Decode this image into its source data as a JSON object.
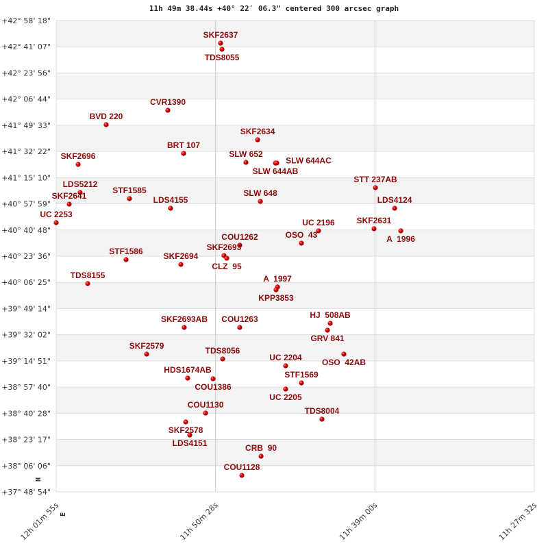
{
  "chart_data": {
    "type": "scatter",
    "title": "11h 49m 38.44s +40° 22′ 06.3\" centered 300 arcsec graph",
    "x_axis": {
      "unit": "RA hours",
      "reversed": true,
      "range_hours": [
        12.0319,
        11.4589
      ],
      "tick_labels": [
        "12h 01m 55s",
        "11h 50m 28s",
        "11h 39m 00s",
        "11h 27m 32s"
      ]
    },
    "y_axis": {
      "unit": "Dec degrees",
      "range_deg": [
        37.815,
        42.9717
      ],
      "tick_labels": [
        "+42° 58' 18\"",
        "+42° 41' 07\"",
        "+42° 23' 56\"",
        "+42° 06' 44\"",
        "+41° 49' 33\"",
        "+41° 32' 22\"",
        "+41° 15' 10\"",
        "+40° 57' 59\"",
        "+40° 40' 48\"",
        "+40° 23' 36\"",
        "+40° 06' 25\"",
        "+39° 49' 14\"",
        "+39° 32' 02\"",
        "+39° 14' 51\"",
        "+38° 57' 40\"",
        "+38° 40' 28\"",
        "+38° 23' 17\"",
        "+38° 06' 06\"",
        "+37° 48' 54\""
      ]
    },
    "compass": {
      "north": "N",
      "east": "E"
    },
    "grid": true,
    "colors": {
      "point": "#d40000",
      "label": "#8b0a0a",
      "band": "#f3f3f3",
      "grid": "#dddddd"
    },
    "points": [
      {
        "name": "SKF2637",
        "ra_h": 11.8349,
        "dec": 42.7246
      },
      {
        "name": "TDS8055",
        "ra_h": 11.8332,
        "dec": 42.6571
      },
      {
        "name": "CVR1390",
        "ra_h": 11.8981,
        "dec": 41.99
      },
      {
        "name": "BVD 220",
        "ra_h": 11.972,
        "dec": 41.8326
      },
      {
        "name": "SKF2634",
        "ra_h": 11.7905,
        "dec": 41.6677
      },
      {
        "name": "BRT 107",
        "ra_h": 11.8792,
        "dec": 41.5178
      },
      {
        "name": "SLW 652",
        "ra_h": 11.8045,
        "dec": 41.4203
      },
      {
        "name": "SLW 644AB",
        "ra_h": 11.7692,
        "dec": 41.4128
      },
      {
        "name": "SLW 644AC",
        "ra_h": 11.7675,
        "dec": 41.4128
      },
      {
        "name": "SKF2696",
        "ra_h": 12.0056,
        "dec": 41.3978
      },
      {
        "name": "STT 237AB",
        "ra_h": 11.6493,
        "dec": 41.143
      },
      {
        "name": "LDS5212",
        "ra_h": 12.0032,
        "dec": 41.0905
      },
      {
        "name": "STF1585",
        "ra_h": 11.9441,
        "dec": 41.0231
      },
      {
        "name": "SKF2641",
        "ra_h": 12.0163,
        "dec": 40.9631
      },
      {
        "name": "LDS4155",
        "ra_h": 11.8948,
        "dec": 40.9181
      },
      {
        "name": "SLW 648",
        "ra_h": 11.7872,
        "dec": 40.9931
      },
      {
        "name": "LDS4124",
        "ra_h": 11.6263,
        "dec": 40.9181
      },
      {
        "name": "UC 2253",
        "ra_h": 12.0319,
        "dec": 40.7607
      },
      {
        "name": "SKF2631",
        "ra_h": 11.651,
        "dec": 40.6933
      },
      {
        "name": "A  1996",
        "ra_h": 11.6189,
        "dec": 40.6708
      },
      {
        "name": "UC 2196",
        "ra_h": 11.7175,
        "dec": 40.6708
      },
      {
        "name": "OSO  43",
        "ra_h": 11.738,
        "dec": 40.5359
      },
      {
        "name": "COU1262",
        "ra_h": 11.8119,
        "dec": 40.5134
      },
      {
        "name": "SKF2693",
        "ra_h": 11.8308,
        "dec": 40.4009
      },
      {
        "name": "CLZ  95",
        "ra_h": 11.8275,
        "dec": 40.371
      },
      {
        "name": "STF1586",
        "ra_h": 11.9482,
        "dec": 40.356
      },
      {
        "name": "SKF2694",
        "ra_h": 11.8825,
        "dec": 40.3035
      },
      {
        "name": "TDS8155",
        "ra_h": 11.9941,
        "dec": 40.0936
      },
      {
        "name": "A  1997",
        "ra_h": 11.7667,
        "dec": 40.0562
      },
      {
        "name": "KPP3853",
        "ra_h": 11.7684,
        "dec": 40.0262
      },
      {
        "name": "SKF2693AB",
        "ra_h": 11.8784,
        "dec": 39.6139
      },
      {
        "name": "COU1263",
        "ra_h": 11.8119,
        "dec": 39.6139
      },
      {
        "name": "HJ  508AB",
        "ra_h": 11.7035,
        "dec": 39.6589
      },
      {
        "name": "GRV 841",
        "ra_h": 11.7068,
        "dec": 39.5839
      },
      {
        "name": "SKF2579",
        "ra_h": 11.9235,
        "dec": 39.3216
      },
      {
        "name": "OSO  42AB",
        "ra_h": 11.6871,
        "dec": 39.3216
      },
      {
        "name": "TDS8056",
        "ra_h": 11.8324,
        "dec": 39.2691
      },
      {
        "name": "UC 2204",
        "ra_h": 11.7569,
        "dec": 39.1942
      },
      {
        "name": "HDS1674AB",
        "ra_h": 11.8743,
        "dec": 39.0593
      },
      {
        "name": "COU1386",
        "ra_h": 11.8439,
        "dec": 39.0518
      },
      {
        "name": "STF1569",
        "ra_h": 11.738,
        "dec": 39.0068
      },
      {
        "name": "UC 2205",
        "ra_h": 11.7569,
        "dec": 38.9393
      },
      {
        "name": "COU1130",
        "ra_h": 11.8529,
        "dec": 38.677
      },
      {
        "name": "SKF2578",
        "ra_h": 11.8767,
        "dec": 38.5795
      },
      {
        "name": "LDS4151",
        "ra_h": 11.8718,
        "dec": 38.4371
      },
      {
        "name": "TDS8004",
        "ra_h": 11.7134,
        "dec": 38.6095
      },
      {
        "name": "CRB  90",
        "ra_h": 11.7864,
        "dec": 38.2048
      },
      {
        "name": "COU1128",
        "ra_h": 11.8094,
        "dec": 37.9949
      }
    ]
  }
}
